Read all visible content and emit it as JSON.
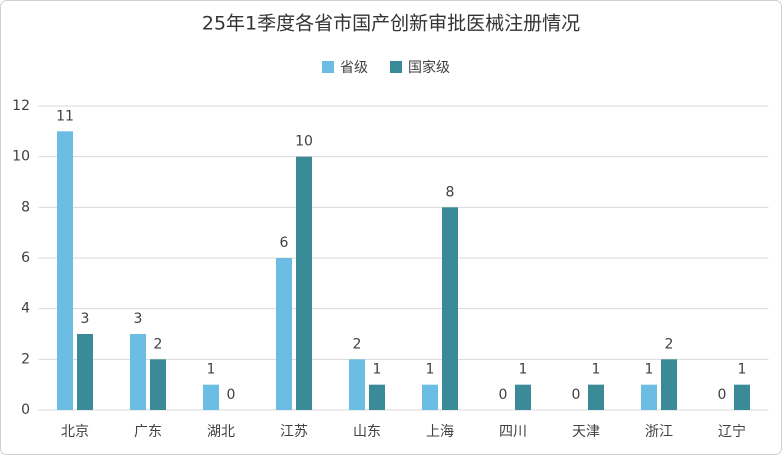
{
  "chart_data": {
    "type": "bar",
    "title": "25年1季度各省市国产创新审批医械注册情况",
    "categories": [
      "北京",
      "广东",
      "湖北",
      "江苏",
      "山东",
      "上海",
      "四川",
      "天津",
      "浙江",
      "辽宁"
    ],
    "series": [
      {
        "name": "省级",
        "color": "#6cbde3",
        "values": [
          11,
          3,
          1,
          6,
          2,
          1,
          0,
          0,
          1,
          0
        ]
      },
      {
        "name": "国家级",
        "color": "#3a8b97",
        "values": [
          3,
          2,
          0,
          10,
          1,
          8,
          1,
          1,
          2,
          1
        ]
      }
    ],
    "ylim": [
      0,
      12
    ],
    "yticks": [
      0,
      2,
      4,
      6,
      8,
      10,
      12
    ],
    "grid": true
  }
}
